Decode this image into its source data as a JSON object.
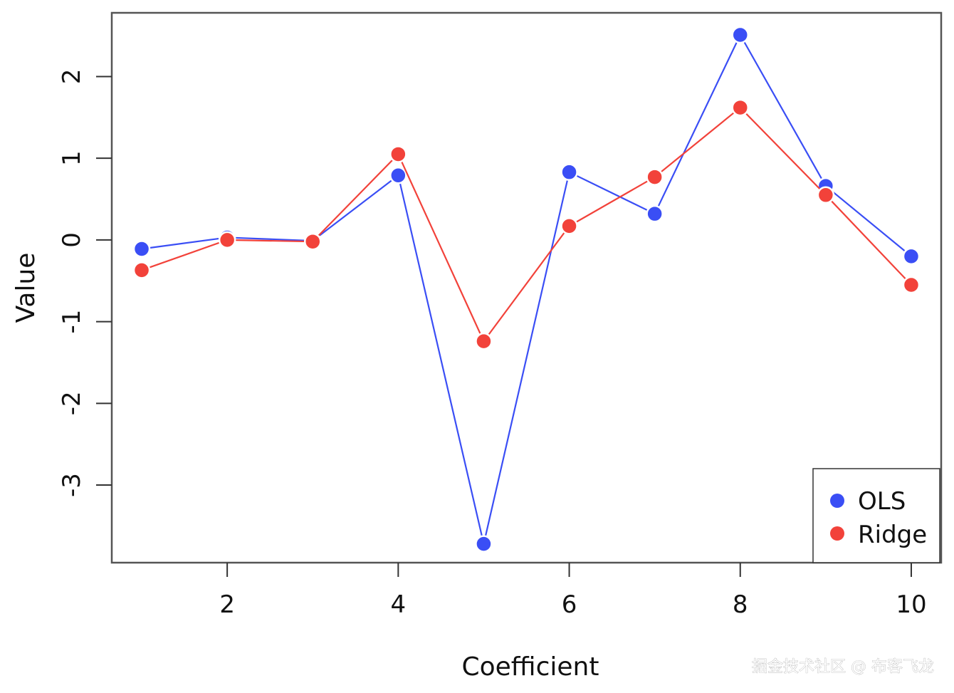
{
  "chart_data": {
    "type": "line",
    "xlabel": "Coefficient",
    "ylabel": "Value",
    "xlim": [
      0.65,
      10.35
    ],
    "ylim": [
      -3.95,
      2.78
    ],
    "xticks": [
      2,
      4,
      6,
      8,
      10
    ],
    "yticks": [
      -3,
      -2,
      -1,
      0,
      1,
      2
    ],
    "grid": false,
    "legend_position": "bottom-right",
    "x": [
      1,
      2,
      3,
      4,
      5,
      6,
      7,
      8,
      9,
      10
    ],
    "series": [
      {
        "name": "OLS",
        "color": "#3a4ef5",
        "values": [
          -0.11,
          0.03,
          -0.01,
          0.79,
          -3.72,
          0.83,
          0.32,
          2.51,
          0.66,
          -0.2
        ]
      },
      {
        "name": "Ridge",
        "color": "#f2423a",
        "values": [
          -0.37,
          0.0,
          -0.02,
          1.05,
          -1.24,
          0.17,
          0.77,
          1.62,
          0.55,
          -0.55
        ]
      }
    ]
  },
  "watermark": "掘金技术社区 @ 布客飞龙"
}
